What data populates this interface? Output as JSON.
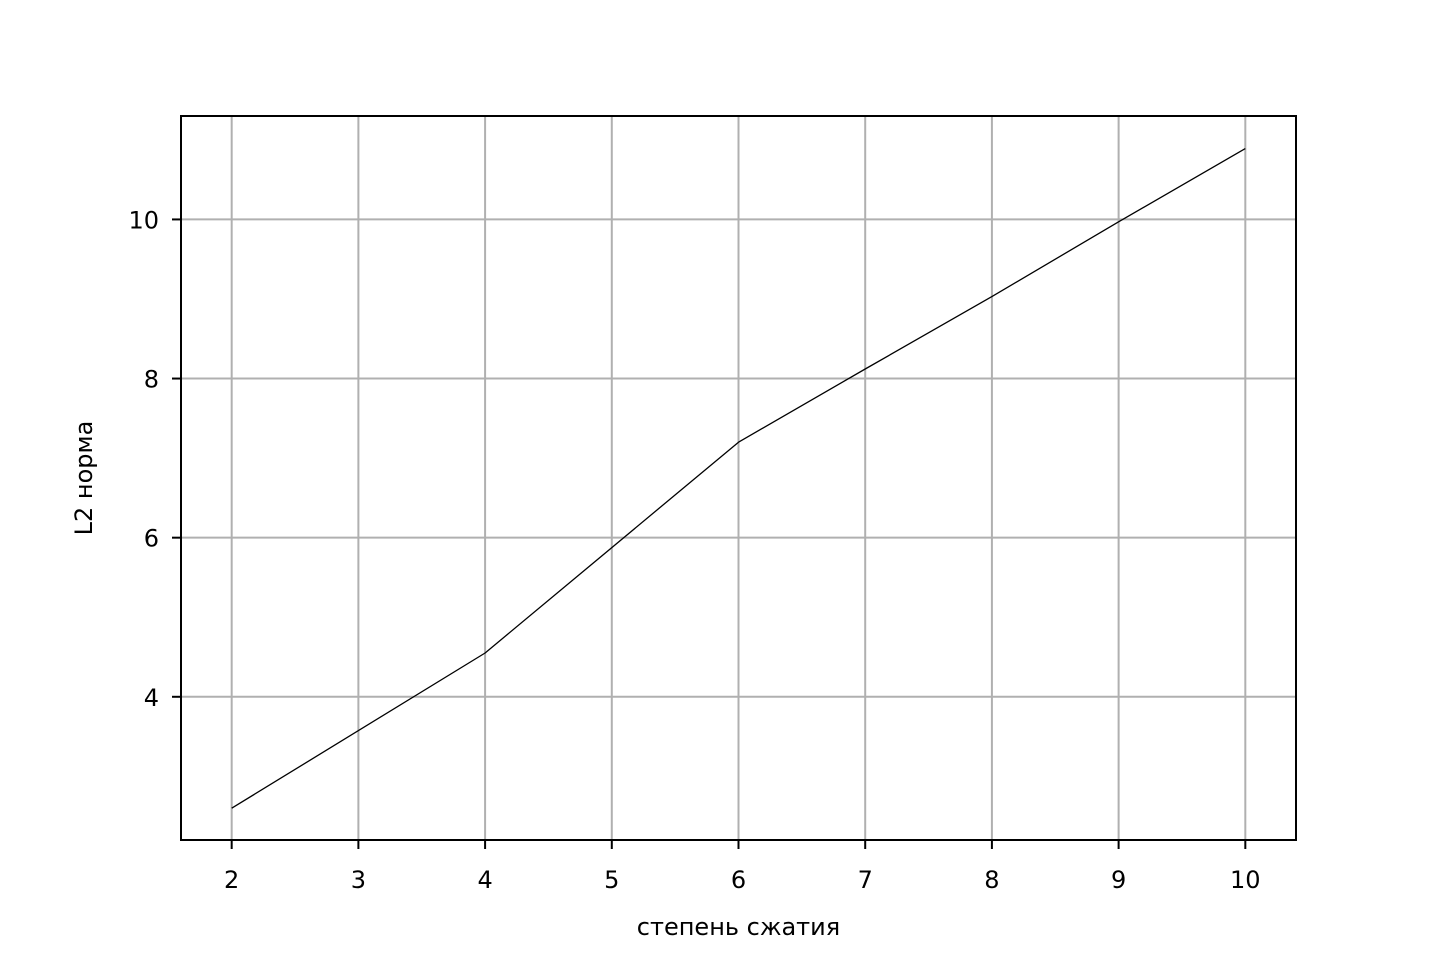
{
  "chart_data": {
    "type": "line",
    "title": "",
    "xlabel": "степень сжатия",
    "ylabel": "L2 норма",
    "xlim": [
      1.6,
      10.4
    ],
    "ylim": [
      2.2,
      11.3
    ],
    "xticks": [
      2,
      3,
      4,
      5,
      6,
      7,
      8,
      9,
      10
    ],
    "xtick_labels": [
      "2",
      "3",
      "4",
      "5",
      "6",
      "7",
      "8",
      "9",
      "10"
    ],
    "yticks": [
      4,
      6,
      8,
      10
    ],
    "ytick_labels": [
      "4",
      "6",
      "8",
      "10"
    ],
    "grid": true,
    "series": [
      {
        "color": "#000000",
        "x": [
          2,
          4,
          6,
          7,
          8,
          9,
          10
        ],
        "y": [
          2.6,
          4.55,
          7.2,
          8.12,
          9.03,
          9.97,
          10.89
        ]
      }
    ]
  }
}
